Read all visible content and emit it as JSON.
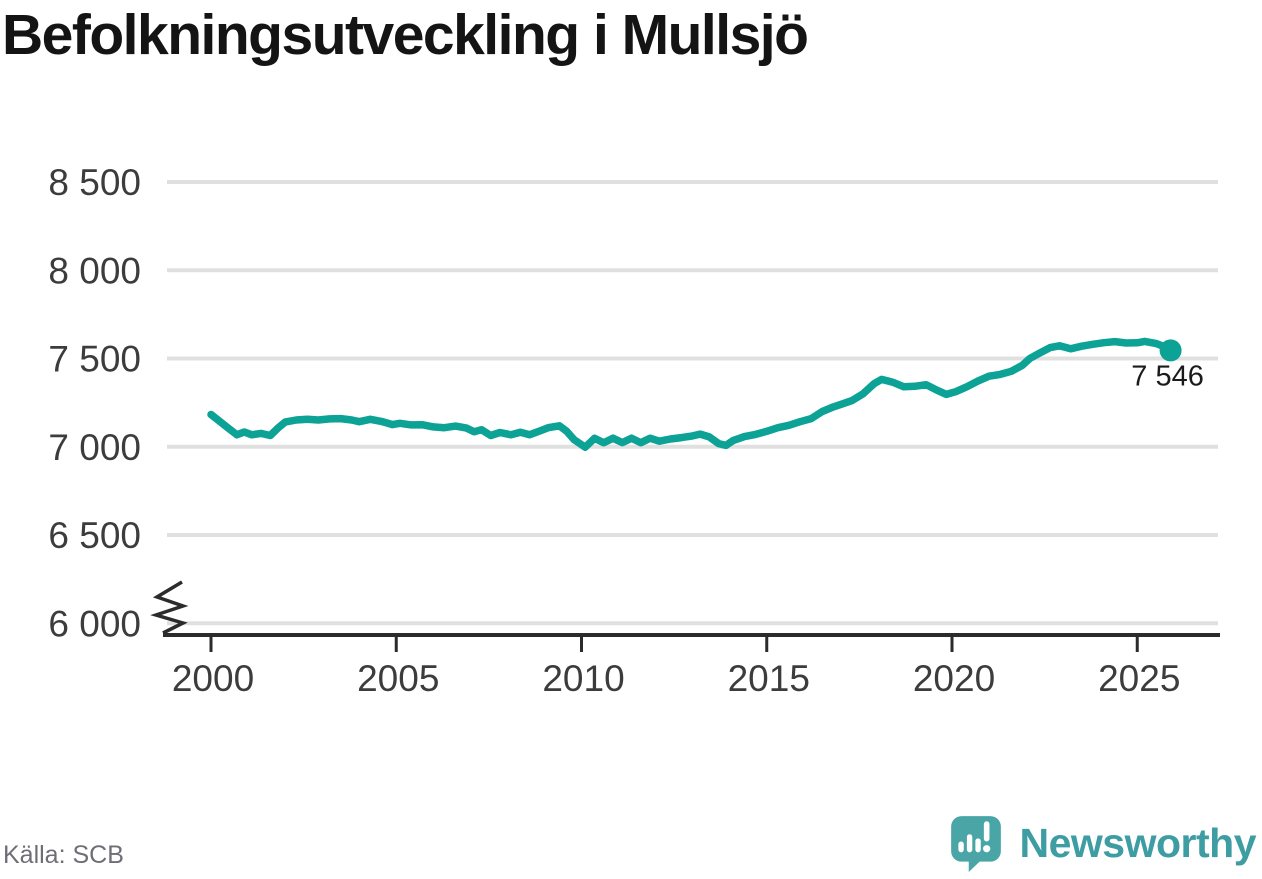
{
  "header": {
    "title": "Befolkningsutveckling i Mullsjö"
  },
  "chart_data": {
    "type": "line",
    "title": "Befolkningsutveckling i Mullsjö",
    "xlabel": "",
    "ylabel": "",
    "x_tick_values": [
      2000,
      2005,
      2010,
      2015,
      2020,
      2025
    ],
    "x_tick_labels": [
      "2000",
      "2005",
      "2010",
      "2015",
      "2020",
      "2025"
    ],
    "y_tick_values": [
      6000,
      6500,
      7000,
      7500,
      8000,
      8500
    ],
    "y_tick_labels": [
      "6 000",
      "6 500",
      "7 000",
      "7 500",
      "8 000",
      "8 500"
    ],
    "ylim": [
      6000,
      8500
    ],
    "xlim": [
      2000,
      2026.4
    ],
    "grid": "horizontal-only",
    "legend": "none",
    "y_axis_break": true,
    "last_point_label": "7 546",
    "last_point_value": 7546,
    "series": [
      {
        "name": "Mullsjö",
        "x": [
          2000.0,
          2000.2,
          2000.45,
          2000.7,
          2000.9,
          2001.1,
          2001.35,
          2001.6,
          2001.8,
          2002.0,
          2002.3,
          2002.6,
          2002.9,
          2003.2,
          2003.5,
          2003.8,
          2004.0,
          2004.3,
          2004.6,
          2004.9,
          2005.1,
          2005.4,
          2005.7,
          2006.0,
          2006.3,
          2006.6,
          2006.9,
          2007.1,
          2007.3,
          2007.55,
          2007.8,
          2008.1,
          2008.35,
          2008.6,
          2008.9,
          2009.1,
          2009.4,
          2009.6,
          2009.8,
          2010.1,
          2010.35,
          2010.6,
          2010.85,
          2011.1,
          2011.35,
          2011.6,
          2011.85,
          2012.1,
          2012.4,
          2012.7,
          2013.0,
          2013.2,
          2013.45,
          2013.7,
          2013.9,
          2014.1,
          2014.4,
          2014.7,
          2015.0,
          2015.3,
          2015.6,
          2015.9,
          2016.2,
          2016.5,
          2016.8,
          2017.0,
          2017.3,
          2017.6,
          2017.9,
          2018.1,
          2018.4,
          2018.7,
          2019.0,
          2019.3,
          2019.6,
          2019.85,
          2020.1,
          2020.4,
          2020.7,
          2021.0,
          2021.3,
          2021.6,
          2021.9,
          2022.1,
          2022.4,
          2022.65,
          2022.9,
          2023.2,
          2023.5,
          2023.8,
          2024.1,
          2024.4,
          2024.7,
          2025.0,
          2025.2,
          2025.5,
          2025.7,
          2025.9
        ],
        "y": [
          7183,
          7150,
          7108,
          7068,
          7084,
          7068,
          7076,
          7064,
          7105,
          7140,
          7152,
          7156,
          7152,
          7158,
          7160,
          7152,
          7142,
          7156,
          7144,
          7126,
          7133,
          7124,
          7125,
          7113,
          7108,
          7117,
          7106,
          7085,
          7097,
          7064,
          7081,
          7068,
          7082,
          7068,
          7092,
          7108,
          7119,
          7088,
          7040,
          6998,
          7048,
          7023,
          7049,
          7024,
          7049,
          7023,
          7049,
          7032,
          7044,
          7052,
          7062,
          7072,
          7056,
          7018,
          7008,
          7036,
          7058,
          7070,
          7088,
          7108,
          7122,
          7142,
          7160,
          7200,
          7226,
          7240,
          7262,
          7300,
          7358,
          7382,
          7366,
          7340,
          7343,
          7352,
          7320,
          7297,
          7312,
          7340,
          7372,
          7400,
          7410,
          7428,
          7462,
          7500,
          7535,
          7562,
          7572,
          7555,
          7570,
          7581,
          7590,
          7596,
          7588,
          7589,
          7597,
          7586,
          7570,
          7546
        ]
      }
    ]
  },
  "colors": {
    "line": "#0CA295",
    "grid": "#E0E0E0",
    "axis": "#2B2B2B",
    "tick_text": "#3C3C3C",
    "end_label_text": "#1B1B1B"
  },
  "footer": {
    "source": "Källa: SCB",
    "brand": "Newsworthy",
    "brand_color": "#3D9DA3",
    "brand_icon_color": "#4AA6A6",
    "brand_icon": "newsworthy-chart-bubble-icon"
  }
}
